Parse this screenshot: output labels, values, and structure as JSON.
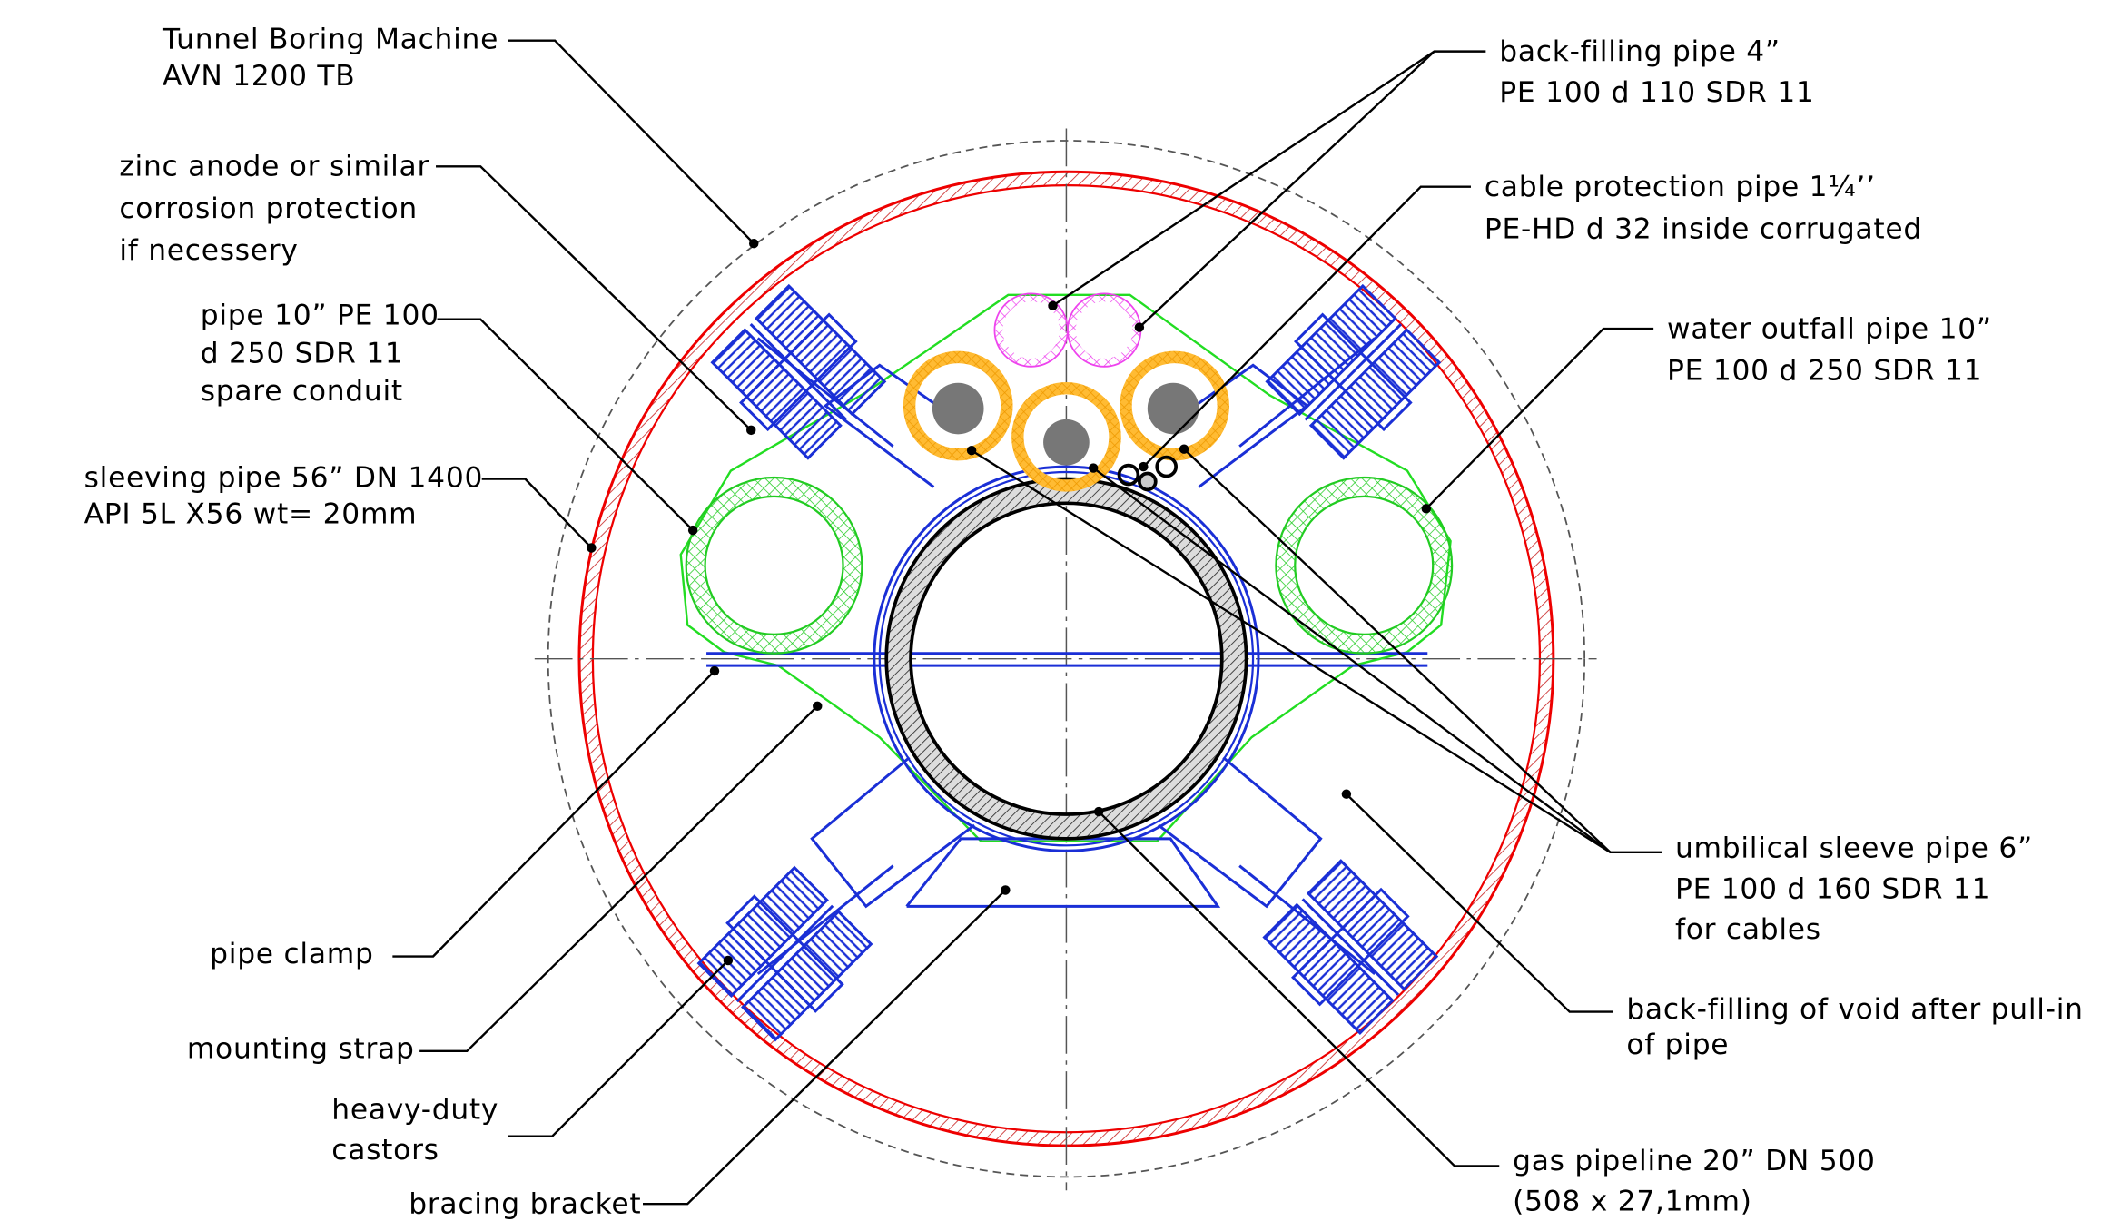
{
  "labels": [
    {
      "lines": [
        "Tunnel Boring Machine",
        "AVN 1200 TB"
      ]
    },
    {
      "lines": [
        "zinc anode or similar",
        "corrosion protection",
        "if necessery"
      ]
    },
    {
      "lines": [
        "pipe 10” PE 100",
        "d 250 SDR 11",
        "spare conduit"
      ]
    },
    {
      "lines": [
        "sleeving pipe 56” DN 1400",
        "API 5L X56 wt= 20mm"
      ]
    },
    {
      "lines": [
        "pipe clamp"
      ]
    },
    {
      "lines": [
        "mounting strap"
      ]
    },
    {
      "lines": [
        "heavy-duty",
        "castors"
      ]
    },
    {
      "lines": [
        "bracing bracket"
      ]
    },
    {
      "lines": [
        "back-filling pipe 4”",
        "PE 100 d 110 SDR 11"
      ]
    },
    {
      "lines": [
        "cable protection pipe 1¼’’",
        "PE-HD d 32 inside corrugated"
      ]
    },
    {
      "lines": [
        "water outfall pipe 10”",
        "PE 100 d 250 SDR 11"
      ]
    },
    {
      "lines": [
        "umbilical sleeve pipe 6”",
        "PE 100 d 160 SDR 11",
        "for cables"
      ]
    },
    {
      "lines": [
        "back-filling of void after pull-in",
        "of pipe"
      ]
    },
    {
      "lines": [
        "gas pipeline 20” DN 500",
        "(508 x 27,1mm)"
      ]
    }
  ]
}
